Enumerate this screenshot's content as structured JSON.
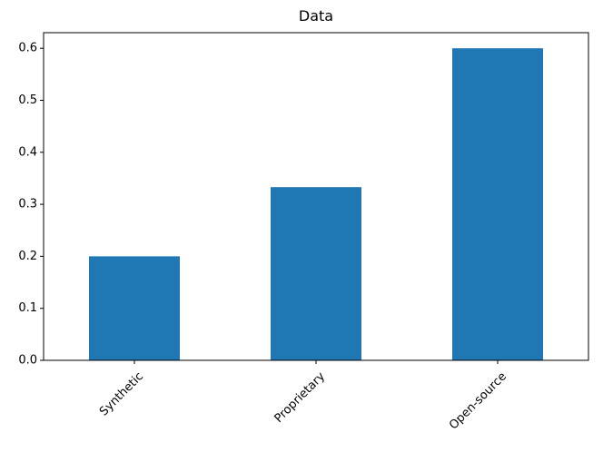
{
  "chart_data": {
    "type": "bar",
    "title": "Data",
    "categories": [
      "Synthetic",
      "Proprietary",
      "Open-source"
    ],
    "values": [
      0.2,
      0.333,
      0.6
    ],
    "color": "#1f77b4",
    "ylim": [
      0,
      0.63
    ],
    "yticks": [
      {
        "value": 0,
        "label": "0.0"
      },
      0.1,
      0.2,
      0.3,
      0.4,
      0.5,
      0.6
    ],
    "grid": false
  }
}
